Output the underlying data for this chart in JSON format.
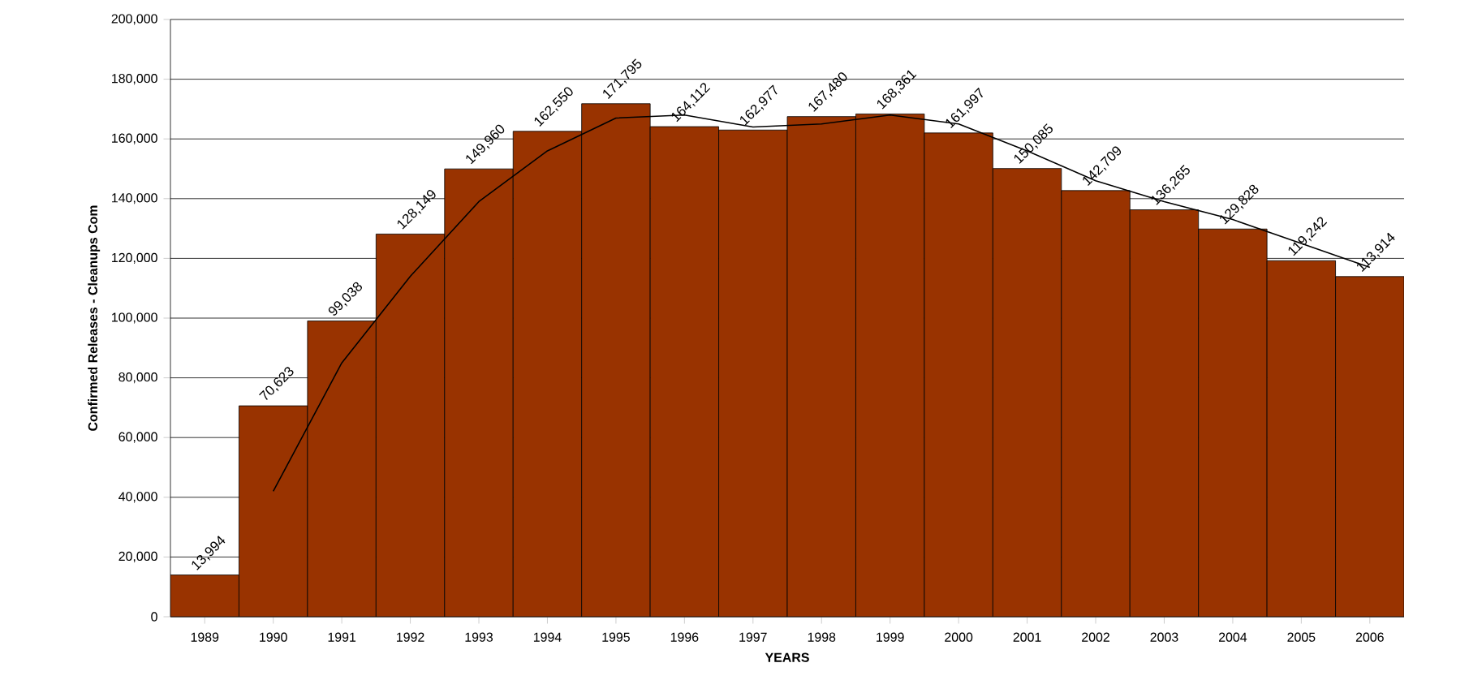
{
  "chart_data": {
    "type": "bar",
    "xlabel": "YEARS",
    "ylabel": "Confirmed Releases - Cleanups Com",
    "categories": [
      "1989",
      "1990",
      "1991",
      "1992",
      "1993",
      "1994",
      "1995",
      "1996",
      "1997",
      "1998",
      "1999",
      "2000",
      "2001",
      "2002",
      "2003",
      "2004",
      "2005",
      "2006"
    ],
    "series": [
      {
        "color": "#993300",
        "values": [
          13994,
          70623,
          99038,
          128149,
          149960,
          162550,
          171795,
          164112,
          162977,
          167480,
          168361,
          161997,
          150085,
          142709,
          136265,
          129828,
          119242,
          113914
        ],
        "value_labels": [
          "13,994",
          "70,623",
          "99,038",
          "128,149",
          "149,960",
          "162,550",
          "171,795",
          "164,112",
          "162,977",
          "167,480",
          "168,361",
          "161,997",
          "150,085",
          "142,709",
          "136,265",
          "129,828",
          "119,242",
          "113,914"
        ]
      },
      {
        "type": "line",
        "color": "#000000",
        "values": [
          null,
          42000,
          85000,
          114000,
          139000,
          156000,
          167000,
          168000,
          164000,
          165000,
          168000,
          165000,
          156000,
          146000,
          139000,
          133000,
          125000,
          117000
        ]
      }
    ],
    "ylim": [
      0,
      200000
    ],
    "yticks": [
      {
        "value": 0,
        "label": "0"
      },
      {
        "value": 20000,
        "label": "20,000"
      },
      {
        "value": 40000,
        "label": "40,000"
      },
      {
        "value": 60000,
        "label": "60,000"
      },
      {
        "value": 80000,
        "label": "80,000"
      },
      {
        "value": 100000,
        "label": "100,000"
      },
      {
        "value": 120000,
        "label": "120,000"
      },
      {
        "value": 140000,
        "label": "140,000"
      },
      {
        "value": 160000,
        "label": "160,000"
      },
      {
        "value": 180000,
        "label": "180,000"
      },
      {
        "value": 200000,
        "label": "200,000"
      }
    ],
    "grid": "y",
    "marker": "none",
    "line_style": "solid"
  }
}
